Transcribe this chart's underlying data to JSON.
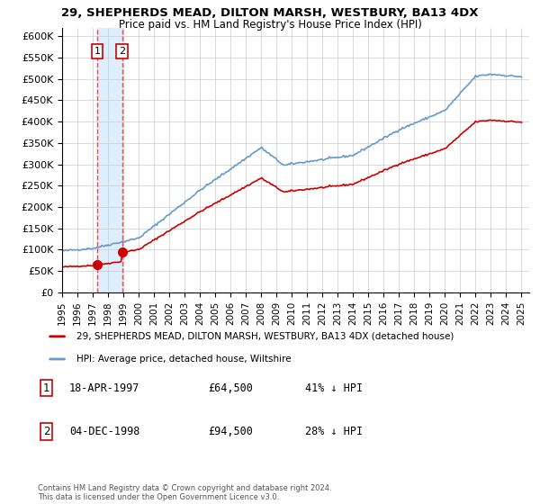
{
  "title1": "29, SHEPHERDS MEAD, DILTON MARSH, WESTBURY, BA13 4DX",
  "title2": "Price paid vs. HM Land Registry's House Price Index (HPI)",
  "legend_label1": "29, SHEPHERDS MEAD, DILTON MARSH, WESTBURY, BA13 4DX (detached house)",
  "legend_label2": "HPI: Average price, detached house, Wiltshire",
  "sale_dates": [
    1997.29,
    1998.92
  ],
  "sale_prices": [
    64500,
    94500
  ],
  "sale_labels": [
    "1",
    "2"
  ],
  "sale_date_strings": [
    "18-APR-1997",
    "04-DEC-1998"
  ],
  "sale_price_strings": [
    "£64,500",
    "£94,500"
  ],
  "sale_pct_strings": [
    "41% ↓ HPI",
    "28% ↓ HPI"
  ],
  "xlim": [
    1995.0,
    2025.5
  ],
  "ylim": [
    0,
    620000
  ],
  "yticks": [
    0,
    50000,
    100000,
    150000,
    200000,
    250000,
    300000,
    350000,
    400000,
    450000,
    500000,
    550000,
    600000
  ],
  "ytick_labels": [
    "£0",
    "£50K",
    "£100K",
    "£150K",
    "£200K",
    "£250K",
    "£300K",
    "£350K",
    "£400K",
    "£450K",
    "£500K",
    "£550K",
    "£600K"
  ],
  "xtick_years": [
    1995,
    1996,
    1997,
    1998,
    1999,
    2000,
    2001,
    2002,
    2003,
    2004,
    2005,
    2006,
    2007,
    2008,
    2009,
    2010,
    2011,
    2012,
    2013,
    2014,
    2015,
    2016,
    2017,
    2018,
    2019,
    2020,
    2021,
    2022,
    2023,
    2024,
    2025
  ],
  "property_color": "#cc0000",
  "hpi_color": "#6699cc",
  "vline_color": "#ff4444",
  "shade_color": "#ddeeff",
  "copyright_text": "Contains HM Land Registry data © Crown copyright and database right 2024.\nThis data is licensed under the Open Government Licence v3.0.",
  "figsize": [
    6.0,
    5.6
  ],
  "dpi": 100
}
